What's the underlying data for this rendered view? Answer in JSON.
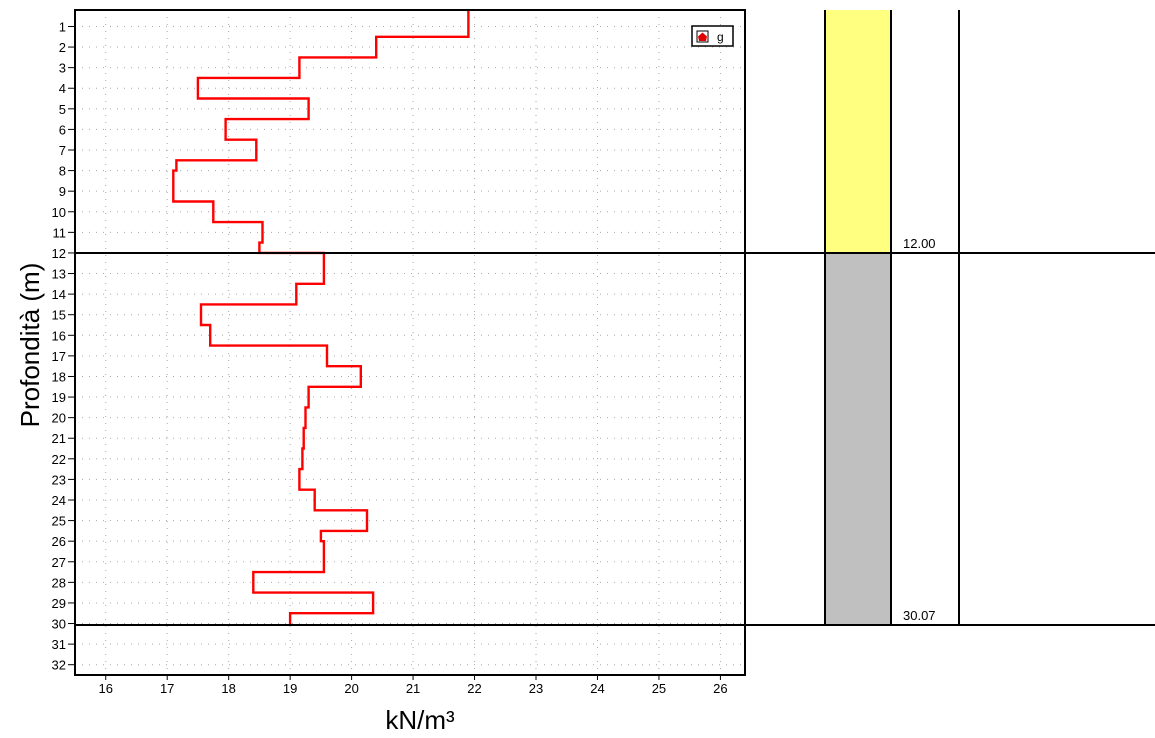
{
  "chart_data": {
    "type": "line",
    "title": "",
    "xlabel": "kN/m³",
    "ylabel": "Profondità (m)",
    "xlim": [
      15.5,
      26.4
    ],
    "ylim": [
      32.5,
      0.2
    ],
    "x_ticks": [
      16,
      17,
      18,
      19,
      20,
      21,
      22,
      23,
      24,
      25,
      26
    ],
    "y_ticks": [
      1,
      2,
      3,
      4,
      5,
      6,
      7,
      8,
      9,
      10,
      11,
      12,
      13,
      14,
      15,
      16,
      17,
      18,
      19,
      20,
      21,
      22,
      23,
      24,
      25,
      26,
      27,
      28,
      29,
      30,
      31,
      32
    ],
    "grid": true,
    "legend": {
      "position": "top-right",
      "entries": [
        "g"
      ]
    },
    "series": [
      {
        "name": "g",
        "color": "#ff0000",
        "step": true,
        "points": [
          [
            21.9,
            0.2
          ],
          [
            21.9,
            1.5
          ],
          [
            20.4,
            1.5
          ],
          [
            20.4,
            2.5
          ],
          [
            19.15,
            2.5
          ],
          [
            19.15,
            3.5
          ],
          [
            17.5,
            3.5
          ],
          [
            17.5,
            4.5
          ],
          [
            19.3,
            4.5
          ],
          [
            19.3,
            5.5
          ],
          [
            17.95,
            5.5
          ],
          [
            17.95,
            6.5
          ],
          [
            18.45,
            6.5
          ],
          [
            18.45,
            7.5
          ],
          [
            17.15,
            7.5
          ],
          [
            17.15,
            8.0
          ],
          [
            17.1,
            8.0
          ],
          [
            17.1,
            9.5
          ],
          [
            17.75,
            9.5
          ],
          [
            17.75,
            10.5
          ],
          [
            18.55,
            10.5
          ],
          [
            18.55,
            11.5
          ],
          [
            18.5,
            11.5
          ],
          [
            18.5,
            12.0
          ],
          [
            19.55,
            12.0
          ],
          [
            19.55,
            13.5
          ],
          [
            19.1,
            13.5
          ],
          [
            19.1,
            14.5
          ],
          [
            17.55,
            14.5
          ],
          [
            17.55,
            15.5
          ],
          [
            17.7,
            15.5
          ],
          [
            17.7,
            16.5
          ],
          [
            19.6,
            16.5
          ],
          [
            19.6,
            17.5
          ],
          [
            20.15,
            17.5
          ],
          [
            20.15,
            18.5
          ],
          [
            19.3,
            18.5
          ],
          [
            19.3,
            19.5
          ],
          [
            19.25,
            19.5
          ],
          [
            19.25,
            20.5
          ],
          [
            19.22,
            20.5
          ],
          [
            19.22,
            21.5
          ],
          [
            19.2,
            21.5
          ],
          [
            19.2,
            22.5
          ],
          [
            19.15,
            22.5
          ],
          [
            19.15,
            23.5
          ],
          [
            19.4,
            23.5
          ],
          [
            19.4,
            24.5
          ],
          [
            20.25,
            24.5
          ],
          [
            20.25,
            25.5
          ],
          [
            19.5,
            25.5
          ],
          [
            19.5,
            26.0
          ],
          [
            19.55,
            26.0
          ],
          [
            19.55,
            27.5
          ],
          [
            18.4,
            27.5
          ],
          [
            18.4,
            28.5
          ],
          [
            20.35,
            28.5
          ],
          [
            20.35,
            29.5
          ],
          [
            19.0,
            29.5
          ],
          [
            19.0,
            30.07
          ]
        ]
      }
    ],
    "layer_boundaries": [
      12.0,
      30.07
    ]
  },
  "stratigraphy": {
    "layers": [
      {
        "top": 0.2,
        "bottom": 12.0,
        "color": "#ffff80",
        "label": "12.00"
      },
      {
        "top": 12.0,
        "bottom": 30.07,
        "color": "#c0c0c0",
        "label": "30.07"
      }
    ]
  }
}
